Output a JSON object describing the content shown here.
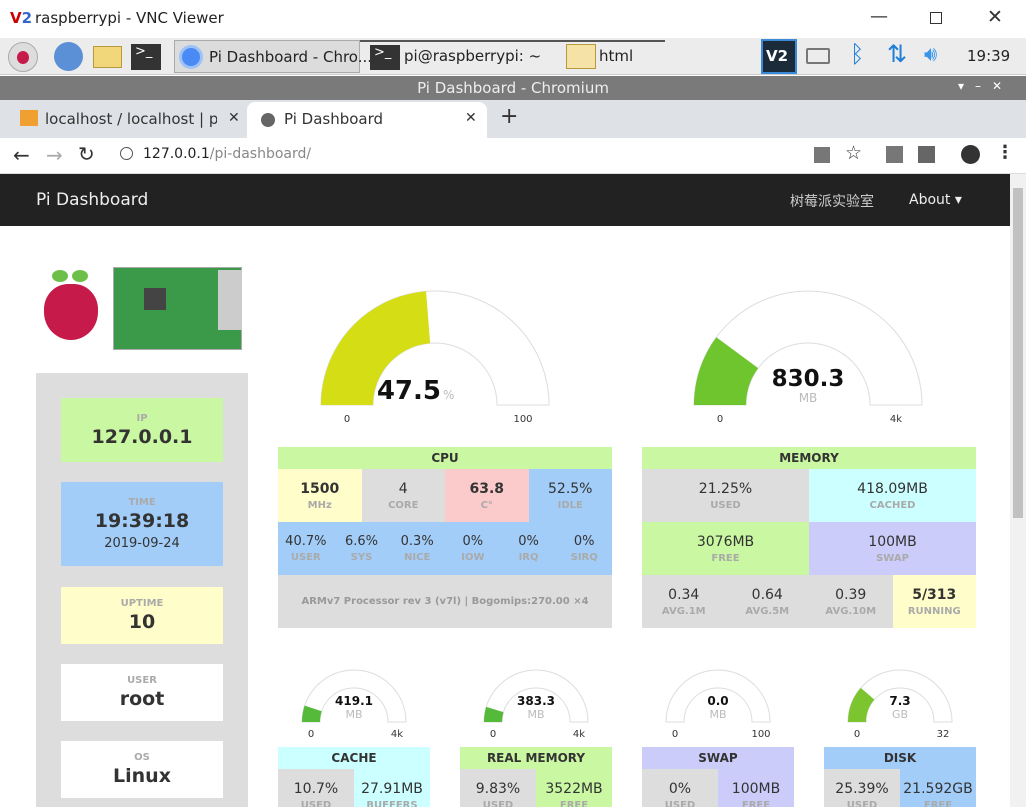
{
  "window": {
    "title": "raspberrypi - VNC Viewer"
  },
  "taskbar": {
    "apps": [
      "Pi Dashboard - Chro...",
      "pi@raspberrypi: ~",
      "html"
    ],
    "clock": "19:39"
  },
  "browser": {
    "title": "Pi Dashboard - Chromium",
    "tabs": [
      "localhost / localhost | ph",
      "Pi Dashboard"
    ],
    "url_host": "127.0.0.1",
    "url_path": "/pi-dashboard/"
  },
  "navbar": {
    "brand": "Pi Dashboard",
    "links": [
      "树莓派实验室",
      "About"
    ]
  },
  "sidebar": [
    {
      "label": "IP",
      "value": "127.0.0.1",
      "color": "#c9f7a2"
    },
    {
      "label": "TIME",
      "value": "19:39:18",
      "sub": "2019-09-24",
      "color": "#a2cdf8"
    },
    {
      "label": "UPTIME",
      "value": "10",
      "color": "#fffdc9"
    },
    {
      "label": "USER",
      "value": "root",
      "color": "#ffffff"
    },
    {
      "label": "OS",
      "value": "Linux",
      "color": "#ffffff"
    }
  ],
  "gauges": [
    {
      "value": 47.5,
      "unit": "%",
      "min": 0,
      "max": 100,
      "color": "#d5dd14"
    },
    {
      "value": 830.3,
      "unit": "MB",
      "min": 0,
      "max": {
        "value": 4096,
        "label": "4k"
      },
      "color": "#6fc52e"
    },
    {
      "value": 419.1,
      "unit": "MB",
      "min": 0,
      "max": {
        "value": 4096,
        "label": "4k"
      },
      "color": "#55b93a"
    },
    {
      "value": 383.3,
      "unit": "MB",
      "min": 0,
      "max": {
        "value": 4096,
        "label": "4k"
      },
      "color": "#55b93a"
    },
    {
      "value": 0,
      "value_label": "0.0",
      "unit": "MB",
      "min": 0,
      "max": 100,
      "color": "#55b93a"
    },
    {
      "value": 7.3,
      "unit": "GB",
      "min": 0,
      "max": 32,
      "color": "#7cc52e"
    }
  ],
  "tables": [
    {
      "title": "CPU",
      "color": "#c9f7a2",
      "rows": [
        [
          {
            "value": "1500",
            "label": "MHz",
            "color": "#fffdc9"
          },
          {
            "value": "4",
            "label": "CORE",
            "color": "#dddddd"
          },
          {
            "value": "63.8",
            "label": "C°",
            "color": "#fbcaca"
          },
          {
            "value": "52.5%",
            "label": "IDLE",
            "color": "#a2cdf8"
          }
        ],
        [
          {
            "value": "40.7%",
            "label": "USER",
            "color": "#a2cdf8"
          },
          {
            "value": "6.6%",
            "label": "SYS",
            "color": "#a2cdf8"
          },
          {
            "value": "0.3%",
            "label": "NICE",
            "color": "#a2cdf8"
          },
          {
            "value": "0%",
            "label": "IOW",
            "color": "#a2cdf8"
          },
          {
            "value": "0%",
            "label": "IRQ",
            "color": "#a2cdf8"
          },
          {
            "value": "0%",
            "label": "SIRQ",
            "color": "#a2cdf8"
          }
        ],
        [
          {
            "value": "ARMv7 Processor rev 3 (v7l) | Bogomips:270.00 ×4",
            "color": "#dddddd"
          }
        ]
      ]
    },
    {
      "title": "MEMORY",
      "color": "#c9f7a2",
      "rows": [
        [
          {
            "value": "21.25%",
            "label": "USED",
            "color": "#dddddd"
          },
          {
            "value": "418.09MB",
            "label": "CACHED",
            "color": "#ccffff"
          }
        ],
        [
          {
            "value": "3076MB",
            "label": "FREE",
            "color": "#c9f7a2"
          },
          {
            "value": "100MB",
            "label": "SWAP",
            "color": "#ccccfa"
          }
        ],
        [
          {
            "value": "0.34",
            "label": "AVG.1M",
            "color": "#dddddd"
          },
          {
            "value": "0.64",
            "label": "AVG.5M",
            "color": "#dddddd"
          },
          {
            "value": "0.39",
            "label": "AVG.10M",
            "color": "#dddddd"
          },
          {
            "value": "5/313",
            "label": "RUNNING",
            "color": "#fffdc9"
          }
        ]
      ]
    },
    {
      "title": "CACHE",
      "color": "#ccffff",
      "rows": [
        [
          {
            "value": "10.7%",
            "label": "USED",
            "color": "#dddddd"
          },
          {
            "value": "27.91MB",
            "label": "BUFFERS",
            "color": "#ccffff"
          }
        ]
      ]
    },
    {
      "title": "REAL MEMORY",
      "color": "#c9f7a2",
      "rows": [
        [
          {
            "value": "9.83%",
            "label": "USED",
            "color": "#dddddd"
          },
          {
            "value": "3522MB",
            "label": "FREE",
            "color": "#c9f7a2"
          }
        ]
      ]
    },
    {
      "title": "SWAP",
      "color": "#ccccfa",
      "rows": [
        [
          {
            "value": "0%",
            "label": "USED",
            "color": "#dddddd"
          },
          {
            "value": "100MB",
            "label": "FREE",
            "color": "#ccccfa"
          }
        ]
      ]
    },
    {
      "title": "DISK",
      "color": "#a2cdf8",
      "rows": [
        [
          {
            "value": "25.39%",
            "label": "USED",
            "color": "#dddddd"
          },
          {
            "value": "21.592GB",
            "label": "FREE",
            "color": "#a2cdf8"
          }
        ]
      ]
    }
  ]
}
